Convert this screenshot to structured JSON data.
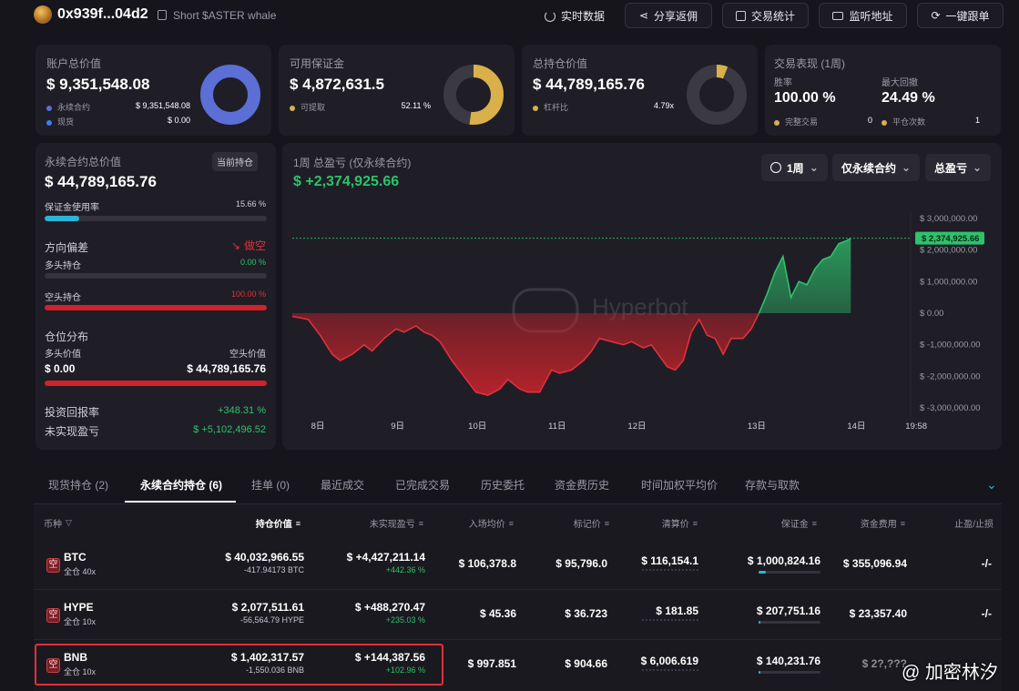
{
  "header": {
    "address": "0x939f...04d2",
    "subtitle": "Short $ASTER whale",
    "buttons": [
      "实时数据",
      "分享返佣",
      "交易统计",
      "监听地址",
      "一键跟单"
    ]
  },
  "stats": {
    "account": {
      "title": "账户总价值",
      "value": "$ 9,351,548.08",
      "rows": [
        {
          "label": "永续合约",
          "value": "$ 9,351,548.08"
        },
        {
          "label": "现货",
          "value": "$ 0.00"
        }
      ]
    },
    "margin": {
      "title": "可用保证金",
      "value": "$ 4,872,631.5",
      "row_label": "可提取",
      "row_value": "52.11 %",
      "ratio": 0.5211
    },
    "position": {
      "title": "总持仓价值",
      "value": "$ 44,789,165.76",
      "row_label": "杠杆比",
      "row_value": "4.79x",
      "ratio": 0.06
    },
    "performance": {
      "title": "交易表现 (1周)",
      "winrate_label": "胜率",
      "winrate": "100.00 %",
      "drawdown_label": "最大回撤",
      "drawdown": "24.49 %",
      "rows": [
        {
          "label": "完整交易",
          "value": "0"
        },
        {
          "label": "平仓次数",
          "value": "1"
        }
      ]
    }
  },
  "perp": {
    "title": "永续合约总价值",
    "badge": "当前持仓",
    "value": "$ 44,789,165.76",
    "margin_usage_label": "保证金使用率",
    "margin_usage": "15.66 %",
    "margin_usage_ratio": 0.1566,
    "bias_label": "方向偏差",
    "bias_value": "做空",
    "long_label": "多头持仓",
    "long_pct": "0.00 %",
    "short_label": "空头持仓",
    "short_pct": "100.00 %",
    "dist_label": "仓位分布",
    "long_value_label": "多头价值",
    "short_value_label": "空头价值",
    "long_value": "$ 0.00",
    "short_value": "$ 44,789,165.76",
    "roi_label": "投资回报率",
    "roi": "+348.31 %",
    "unrealized_label": "未实现盈亏",
    "unrealized": "$ +5,102,496.52"
  },
  "chart_panel": {
    "title": "1周 总盈亏 (仅永续合约)",
    "value": "$ +2,374,925.66",
    "selects": [
      "1周",
      "仅永续合约",
      "总盈亏"
    ],
    "watermark": "Hyperbot",
    "current_label": "$ 2,374,925.66"
  },
  "chart_data": {
    "type": "area",
    "x": [
      "8日",
      "9日",
      "10日",
      "11日",
      "12日",
      "13日",
      "14日",
      "19:58"
    ],
    "y_ticks": [
      "$ 3,000,000.00",
      "$ 2,000,000.00",
      "$ 1,000,000.00",
      "$ 0.00",
      "$ -1,000,000.00",
      "$ -2,000,000.00",
      "$ -3,000,000.00"
    ],
    "ylim": [
      -3000000,
      3000000
    ],
    "current": 2374925.66,
    "points": [
      [
        0,
        -100000
      ],
      [
        0.2,
        -200000
      ],
      [
        0.35,
        -700000
      ],
      [
        0.5,
        -1300000
      ],
      [
        0.6,
        -1500000
      ],
      [
        0.75,
        -1300000
      ],
      [
        0.9,
        -1000000
      ],
      [
        1.0,
        -1200000
      ],
      [
        1.15,
        -800000
      ],
      [
        1.3,
        -500000
      ],
      [
        1.4,
        -600000
      ],
      [
        1.55,
        -400000
      ],
      [
        1.65,
        -600000
      ],
      [
        1.75,
        -700000
      ],
      [
        1.85,
        -900000
      ],
      [
        2.0,
        -1500000
      ],
      [
        2.15,
        -2000000
      ],
      [
        2.3,
        -2500000
      ],
      [
        2.45,
        -2600000
      ],
      [
        2.6,
        -2400000
      ],
      [
        2.7,
        -2100000
      ],
      [
        2.85,
        -2400000
      ],
      [
        2.95,
        -2500000
      ],
      [
        3.1,
        -2500000
      ],
      [
        3.25,
        -1800000
      ],
      [
        3.35,
        -1900000
      ],
      [
        3.5,
        -1800000
      ],
      [
        3.65,
        -1500000
      ],
      [
        3.75,
        -1200000
      ],
      [
        3.85,
        -800000
      ],
      [
        4.0,
        -900000
      ],
      [
        4.15,
        -1000000
      ],
      [
        4.25,
        -900000
      ],
      [
        4.4,
        -1100000
      ],
      [
        4.5,
        -1000000
      ],
      [
        4.7,
        -1700000
      ],
      [
        4.8,
        -1800000
      ],
      [
        4.9,
        -1500000
      ],
      [
        5.0,
        -600000
      ],
      [
        5.1,
        -200000
      ],
      [
        5.2,
        -700000
      ],
      [
        5.3,
        -800000
      ],
      [
        5.4,
        -1300000
      ],
      [
        5.5,
        -800000
      ],
      [
        5.65,
        -800000
      ],
      [
        5.75,
        -500000
      ],
      [
        5.85,
        0
      ],
      [
        5.95,
        600000
      ],
      [
        6.05,
        1300000
      ],
      [
        6.15,
        1800000
      ],
      [
        6.25,
        500000
      ],
      [
        6.35,
        1000000
      ],
      [
        6.45,
        900000
      ],
      [
        6.55,
        1400000
      ],
      [
        6.65,
        1700000
      ],
      [
        6.75,
        1800000
      ],
      [
        6.85,
        2200000
      ],
      [
        6.95,
        2300000
      ],
      [
        7.0,
        2374925.66
      ]
    ]
  },
  "tabs": [
    "现货持仓 (2)",
    "永续合约持仓 (6)",
    "挂单 (0)",
    "最近成交",
    "已完成交易",
    "历史委托",
    "资金费历史",
    "时间加权平均价",
    "存款与取款"
  ],
  "table": {
    "headers": [
      "币种",
      "持仓价值",
      "未实现盈亏",
      "入场均价",
      "标记价",
      "清算价",
      "保证金",
      "资金费用",
      "止盈/止损"
    ],
    "rows": [
      {
        "tag": "空",
        "coin": "BTC",
        "mode": "全仓 40x",
        "value": "$ 40,032,966.55",
        "size": "-417.94173 BTC",
        "pnl": "$ +4,427,211.14",
        "pnl_pct": "+442.36 %",
        "entry": "$ 106,378.8",
        "mark": "$ 95,796.0",
        "liq": "$ 116,154.1",
        "margin": "$ 1,000,824.16",
        "funding": "$ 355,096.94",
        "tpsl": "-/-"
      },
      {
        "tag": "空",
        "coin": "HYPE",
        "mode": "全仓 10x",
        "value": "$ 2,077,511.61",
        "size": "-56,564.79 HYPE",
        "pnl": "$ +488,270.47",
        "pnl_pct": "+235.03 %",
        "entry": "$ 45.36",
        "mark": "$ 36.723",
        "liq": "$ 181.85",
        "margin": "$ 207,751.16",
        "funding": "$ 23,357.40",
        "tpsl": "-/-"
      },
      {
        "tag": "空",
        "coin": "BNB",
        "mode": "全仓 10x",
        "value": "$ 1,402,317.57",
        "size": "-1,550.036 BNB",
        "pnl": "$ +144,387.56",
        "pnl_pct": "+102.96 %",
        "entry": "$ 997.851",
        "mark": "$ 904.66",
        "liq": "$ 6,006.619",
        "margin": "$ 140,231.76",
        "funding": "$ 2?,???",
        "tpsl": ""
      }
    ]
  },
  "overlay_watermark": "@ 加密林汐"
}
